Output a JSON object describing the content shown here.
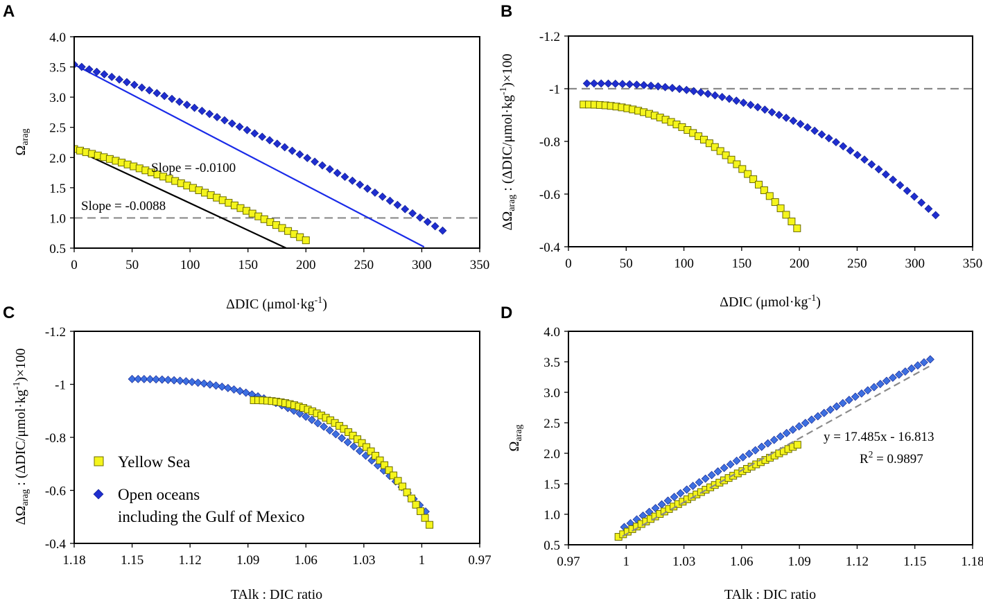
{
  "chart_data": [
    {
      "panel": "A",
      "type": "scatter",
      "xlabel": "ΔDIC (μmol·kg-1)",
      "ylabel": "Ωarag",
      "xlim": [
        0,
        350
      ],
      "ylim": [
        0.5,
        4.0
      ],
      "xticks": [
        "0",
        "50",
        "100",
        "150",
        "200",
        "250",
        "300",
        "350"
      ],
      "yticks": [
        "0.5",
        "1.0",
        "1.5",
        "2.0",
        "2.5",
        "3.0",
        "3.5",
        "4.0"
      ],
      "reference_line": {
        "y": 1.0,
        "style": "dashed"
      },
      "annotations": [
        "Slope = -0.0100",
        "Slope = -0.0088"
      ],
      "series": [
        {
          "name": "Yellow Sea",
          "marker": "square",
          "x_start": 0,
          "x_end": 200,
          "count": 40,
          "y_start": 2.14,
          "y_end": 0.63,
          "curvature": 0.35
        },
        {
          "name": "Open oceans including the Gulf of Mexico",
          "marker": "diamond",
          "x_start": 0,
          "x_end": 318,
          "count": 50,
          "y_start": 3.54,
          "y_end": 0.79,
          "curvature": 0.3
        }
      ],
      "fit_lines": [
        {
          "x1": 0,
          "y1": 2.14,
          "x2": 183,
          "y2": 0.5,
          "color": "#000000"
        },
        {
          "x1": 0,
          "y1": 3.54,
          "x2": 302,
          "y2": 0.52,
          "color": "#1a2be8"
        }
      ]
    },
    {
      "panel": "B",
      "type": "scatter",
      "xlabel": "ΔDIC (μmol·kg-1)",
      "ylabel": "ΔΩarag : (ΔDIC/μmol·kg-1)×100",
      "xlim": [
        0,
        350
      ],
      "ylim": [
        -0.4,
        -1.2
      ],
      "xticks": [
        "0",
        "50",
        "100",
        "150",
        "200",
        "250",
        "300",
        "350"
      ],
      "yticks": [
        "-0.4",
        "-0.6",
        "-0.8",
        "-1",
        "-1.2"
      ],
      "reference_line": {
        "y": -1.0,
        "style": "dashed"
      },
      "series": [
        {
          "name": "Yellow Sea",
          "marker": "square",
          "x_start": 13,
          "x_end": 198,
          "count": 40,
          "y_start": -0.94,
          "y_end": -0.47,
          "power": 2.2
        },
        {
          "name": "Open oceans including the Gulf of Mexico",
          "marker": "diamond",
          "x_start": 16,
          "x_end": 318,
          "count": 50,
          "y_start": -1.02,
          "y_end": -0.52,
          "power": 2.4
        }
      ]
    },
    {
      "panel": "C",
      "type": "scatter",
      "xlabel": "TAlk : DIC ratio",
      "ylabel": "ΔΩarag : (ΔDIC/μmol·kg-1)×100",
      "xlim": [
        1.18,
        0.97
      ],
      "ylim": [
        -0.4,
        -1.2
      ],
      "xticks": [
        "1.18",
        "1.15",
        "1.12",
        "1.09",
        "1.06",
        "1.03",
        "1",
        "0.97"
      ],
      "yticks": [
        "-0.4",
        "-0.6",
        "-0.8",
        "-1",
        "-1.2"
      ],
      "legend_position": "center-left",
      "series": [
        {
          "name": "Yellow Sea",
          "marker": "square",
          "x_start": 1.087,
          "x_end": 0.996,
          "count": 40,
          "y_start": -0.94,
          "y_end": -0.47,
          "power": 2.2
        },
        {
          "name": "Open oceans including the Gulf of Mexico",
          "marker": "diamond",
          "x_start": 1.15,
          "x_end": 0.998,
          "count": 50,
          "y_start": -1.02,
          "y_end": -0.52,
          "power": 2.4
        }
      ]
    },
    {
      "panel": "D",
      "type": "scatter",
      "xlabel": "TAlk : DIC ratio",
      "ylabel": "Ωarag",
      "xlim": [
        0.97,
        1.18
      ],
      "ylim": [
        0.5,
        4.0
      ],
      "xticks": [
        "0.97",
        "1",
        "1.03",
        "1.06",
        "1.09",
        "1.12",
        "1.15",
        "1.18"
      ],
      "yticks": [
        "0.5",
        "1.0",
        "1.5",
        "2.0",
        "2.5",
        "3.0",
        "3.5",
        "4.0"
      ],
      "equation": "y = 17.485x - 16.813",
      "r_squared": "R2 = 0.9897",
      "trendline": {
        "slope": 17.485,
        "intercept": -16.813,
        "x_from": 0.998,
        "x_to": 1.158,
        "style": "dashed"
      },
      "series": [
        {
          "name": "Yellow Sea",
          "marker": "square",
          "x_start": 0.996,
          "x_end": 1.089,
          "count": 40,
          "y_start": 0.63,
          "y_end": 2.14,
          "curvature": 0.1
        },
        {
          "name": "Open oceans including the Gulf of Mexico",
          "marker": "diamond",
          "x_start": 0.999,
          "x_end": 1.158,
          "count": 50,
          "y_start": 0.79,
          "y_end": 3.54,
          "curvature": 0.12
        }
      ]
    }
  ],
  "legend": {
    "yellow_sea": "Yellow Sea",
    "open_ocean_line1": "Open oceans",
    "open_ocean_line2": "including the Gulf of Mexico"
  },
  "colors": {
    "yellow_fill": "#f5f51c",
    "yellow_edge": "#6b6b00",
    "diamond_dark": "#1f2ecf",
    "diamond_light": "#3d6fe0",
    "blue_fit": "#1a2be8",
    "gray_dash": "#8a8a8a"
  }
}
